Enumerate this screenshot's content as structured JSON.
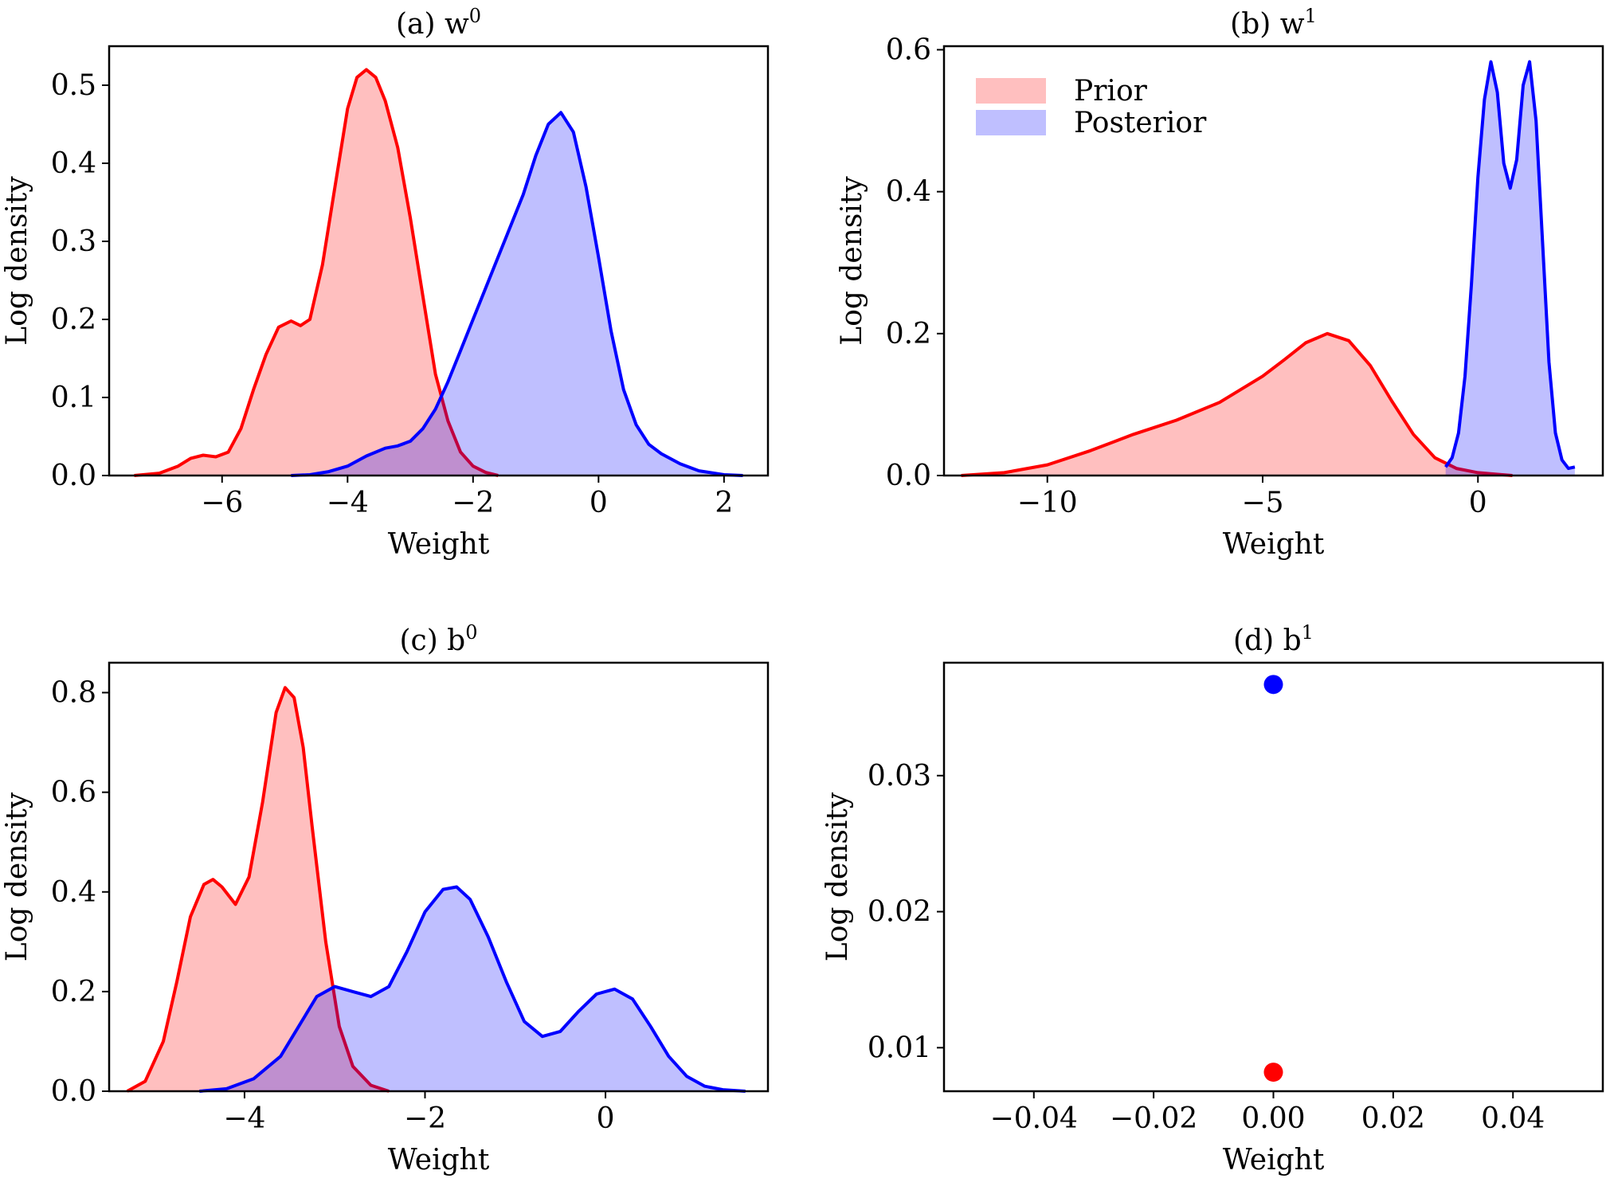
{
  "colors": {
    "prior": "#ff0000",
    "posterior": "#0000ff"
  },
  "legend": {
    "placement": "top-left",
    "prior_label": "Prior",
    "posterior_label": "Posterior"
  },
  "chart_data": [
    {
      "type": "area",
      "title": "(a) w",
      "title_sup": "0",
      "xlabel": "Weight",
      "ylabel": "Log density",
      "xlim": [
        -7.8,
        2.7
      ],
      "ylim": [
        0,
        0.55
      ],
      "xticks": [
        -6,
        -4,
        -2,
        0,
        2
      ],
      "xtick_labels": [
        "−6",
        "−4",
        "−2",
        "0",
        "2"
      ],
      "yticks": [
        0,
        0.1,
        0.2,
        0.3,
        0.4,
        0.5
      ],
      "ytick_labels": [
        "0.0",
        "0.1",
        "0.2",
        "0.3",
        "0.4",
        "0.5"
      ],
      "series": [
        {
          "name": "Prior",
          "x": [
            -7.4,
            -7.0,
            -6.7,
            -6.5,
            -6.3,
            -6.1,
            -5.9,
            -5.7,
            -5.5,
            -5.3,
            -5.1,
            -4.9,
            -4.75,
            -4.6,
            -4.4,
            -4.2,
            -4.0,
            -3.85,
            -3.7,
            -3.55,
            -3.4,
            -3.2,
            -3.0,
            -2.8,
            -2.6,
            -2.4,
            -2.2,
            -2.0,
            -1.8,
            -1.6
          ],
          "y": [
            0.0,
            0.003,
            0.012,
            0.022,
            0.026,
            0.024,
            0.03,
            0.06,
            0.11,
            0.155,
            0.19,
            0.198,
            0.192,
            0.2,
            0.27,
            0.37,
            0.47,
            0.51,
            0.52,
            0.51,
            0.48,
            0.42,
            0.33,
            0.23,
            0.13,
            0.07,
            0.03,
            0.012,
            0.004,
            0.0
          ]
        },
        {
          "name": "Posterior",
          "x": [
            -4.9,
            -4.6,
            -4.3,
            -4.0,
            -3.7,
            -3.4,
            -3.2,
            -3.0,
            -2.8,
            -2.6,
            -2.4,
            -2.2,
            -2.0,
            -1.8,
            -1.6,
            -1.4,
            -1.2,
            -1.0,
            -0.8,
            -0.6,
            -0.4,
            -0.2,
            0.0,
            0.2,
            0.4,
            0.6,
            0.8,
            1.0,
            1.3,
            1.6,
            2.0,
            2.3
          ],
          "y": [
            0.0,
            0.001,
            0.005,
            0.012,
            0.025,
            0.035,
            0.038,
            0.044,
            0.06,
            0.085,
            0.12,
            0.16,
            0.2,
            0.24,
            0.28,
            0.32,
            0.36,
            0.41,
            0.45,
            0.465,
            0.44,
            0.37,
            0.28,
            0.185,
            0.11,
            0.065,
            0.04,
            0.028,
            0.015,
            0.006,
            0.001,
            0.0
          ]
        }
      ]
    },
    {
      "type": "area",
      "title": "(b) w",
      "title_sup": "1",
      "xlabel": "Weight",
      "ylabel": "Log density",
      "xlim": [
        -12.4,
        2.9
      ],
      "ylim": [
        0,
        0.605
      ],
      "xticks": [
        -10,
        -5,
        0
      ],
      "xtick_labels": [
        "−10",
        "−5",
        "0"
      ],
      "yticks": [
        0,
        0.2,
        0.4,
        0.6
      ],
      "ytick_labels": [
        "0.0",
        "0.2",
        "0.4",
        "0.6"
      ],
      "legend": true,
      "series": [
        {
          "name": "Prior",
          "x": [
            -12.0,
            -11.0,
            -10.0,
            -9.0,
            -8.0,
            -7.0,
            -6.0,
            -5.0,
            -4.5,
            -4.0,
            -3.5,
            -3.0,
            -2.5,
            -2.0,
            -1.5,
            -1.0,
            -0.5,
            0.0,
            0.4,
            0.8
          ],
          "y": [
            0.0,
            0.004,
            0.015,
            0.035,
            0.058,
            0.078,
            0.103,
            0.14,
            0.163,
            0.187,
            0.2,
            0.19,
            0.155,
            0.105,
            0.058,
            0.025,
            0.01,
            0.004,
            0.002,
            0.0
          ]
        },
        {
          "name": "Posterior",
          "x": [
            -0.75,
            -0.6,
            -0.45,
            -0.3,
            -0.15,
            0.0,
            0.15,
            0.3,
            0.45,
            0.6,
            0.75,
            0.9,
            1.05,
            1.2,
            1.35,
            1.5,
            1.65,
            1.8,
            1.95,
            2.1,
            2.25
          ],
          "y": [
            0.012,
            0.025,
            0.06,
            0.14,
            0.27,
            0.42,
            0.53,
            0.583,
            0.54,
            0.44,
            0.405,
            0.445,
            0.55,
            0.583,
            0.5,
            0.33,
            0.16,
            0.06,
            0.022,
            0.01,
            0.012
          ]
        }
      ]
    },
    {
      "type": "area",
      "title": "(c) b",
      "title_sup": "0",
      "xlabel": "Weight",
      "ylabel": "Log density",
      "xlim": [
        -5.5,
        1.8
      ],
      "ylim": [
        0,
        0.86
      ],
      "xticks": [
        -4,
        -2,
        0
      ],
      "xtick_labels": [
        "−4",
        "−2",
        "0"
      ],
      "yticks": [
        0,
        0.2,
        0.4,
        0.6,
        0.8
      ],
      "ytick_labels": [
        "0.0",
        "0.2",
        "0.4",
        "0.6",
        "0.8"
      ],
      "series": [
        {
          "name": "Prior",
          "x": [
            -5.3,
            -5.1,
            -4.9,
            -4.75,
            -4.6,
            -4.45,
            -4.35,
            -4.25,
            -4.1,
            -3.95,
            -3.8,
            -3.65,
            -3.55,
            -3.45,
            -3.35,
            -3.25,
            -3.1,
            -2.95,
            -2.8,
            -2.6,
            -2.4
          ],
          "y": [
            0.0,
            0.02,
            0.1,
            0.22,
            0.35,
            0.415,
            0.425,
            0.41,
            0.375,
            0.43,
            0.58,
            0.76,
            0.81,
            0.79,
            0.69,
            0.53,
            0.3,
            0.13,
            0.05,
            0.012,
            0.0
          ]
        },
        {
          "name": "Posterior",
          "x": [
            -4.5,
            -4.2,
            -3.9,
            -3.6,
            -3.4,
            -3.2,
            -3.0,
            -2.8,
            -2.6,
            -2.4,
            -2.2,
            -2.0,
            -1.8,
            -1.65,
            -1.5,
            -1.3,
            -1.1,
            -0.9,
            -0.7,
            -0.5,
            -0.3,
            -0.1,
            0.1,
            0.3,
            0.5,
            0.7,
            0.9,
            1.1,
            1.3,
            1.55
          ],
          "y": [
            0.0,
            0.005,
            0.025,
            0.07,
            0.13,
            0.19,
            0.21,
            0.2,
            0.19,
            0.21,
            0.28,
            0.36,
            0.405,
            0.41,
            0.385,
            0.31,
            0.22,
            0.14,
            0.11,
            0.12,
            0.16,
            0.195,
            0.205,
            0.185,
            0.13,
            0.07,
            0.03,
            0.01,
            0.003,
            0.0
          ]
        }
      ]
    },
    {
      "type": "scatter",
      "title": "(d) b",
      "title_sup": "1",
      "xlabel": "Weight",
      "ylabel": "Log density",
      "xlim": [
        -0.055,
        0.055
      ],
      "ylim": [
        0.0068,
        0.0383
      ],
      "xticks": [
        -0.04,
        -0.02,
        0.0,
        0.02,
        0.04
      ],
      "xtick_labels": [
        "−0.04",
        "−0.02",
        "0.00",
        "0.02",
        "0.04"
      ],
      "yticks": [
        0.01,
        0.02,
        0.03
      ],
      "ytick_labels": [
        "0.01",
        "0.02",
        "0.03"
      ],
      "series": [
        {
          "name": "Prior",
          "x": [
            0.0
          ],
          "y": [
            0.0082
          ]
        },
        {
          "name": "Posterior",
          "x": [
            0.0
          ],
          "y": [
            0.0367
          ]
        }
      ]
    }
  ]
}
